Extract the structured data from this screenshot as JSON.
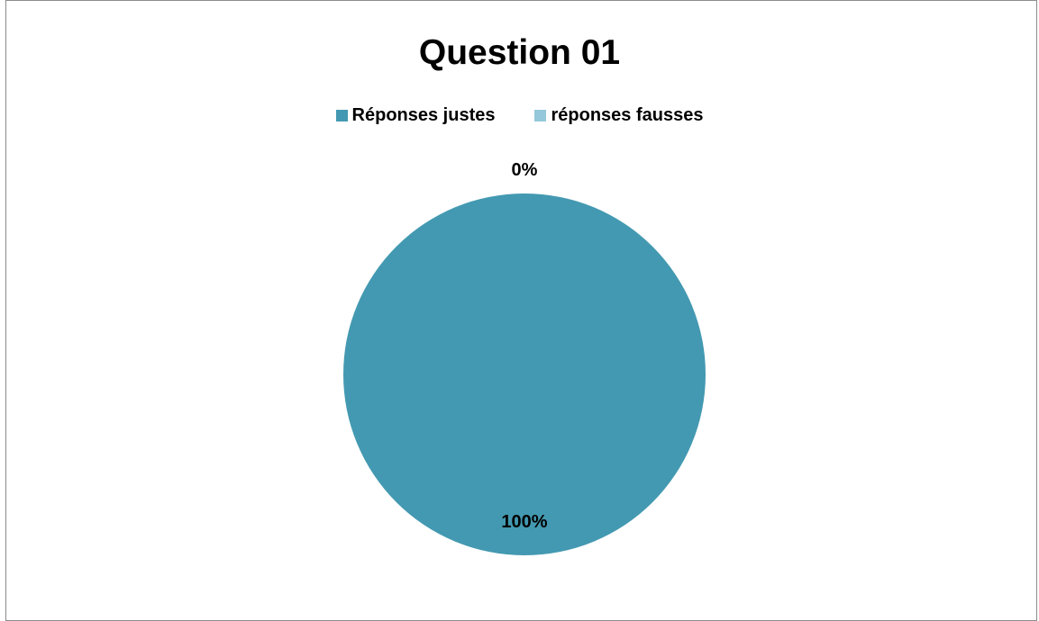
{
  "chart_data": {
    "type": "pie",
    "title": "Question 01",
    "categories": [
      "Réponses justes",
      "réponses fausses"
    ],
    "values": [
      100,
      0
    ],
    "data_labels": [
      "100%",
      "0%"
    ],
    "colors": [
      "#4399b1",
      "#94c8da"
    ],
    "legend_position": "top"
  }
}
